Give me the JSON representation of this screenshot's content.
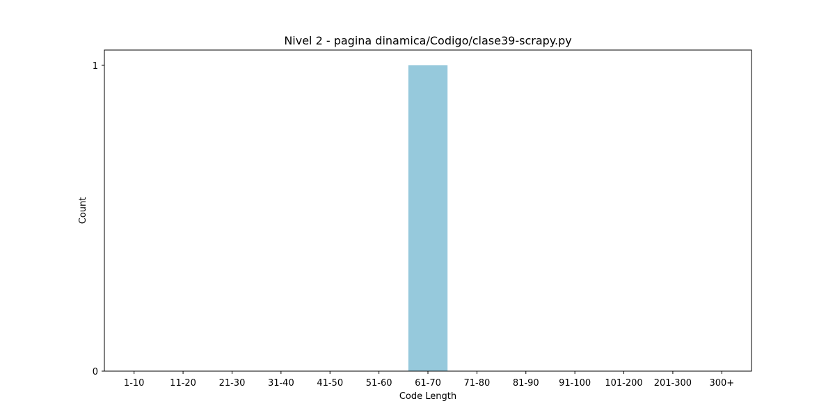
{
  "chart_data": {
    "type": "bar",
    "title": "Nivel 2 - pagina dinamica/Codigo/clase39-scrapy.py",
    "xlabel": "Code Length",
    "ylabel": "Count",
    "categories": [
      "1-10",
      "11-20",
      "21-30",
      "31-40",
      "41-50",
      "51-60",
      "61-70",
      "71-80",
      "81-90",
      "91-100",
      "101-200",
      "201-300",
      "300+"
    ],
    "values": [
      0,
      0,
      0,
      0,
      0,
      0,
      1,
      0,
      0,
      0,
      0,
      0,
      0
    ],
    "yticks": [
      0,
      1
    ],
    "ylim": [
      0,
      1.05
    ],
    "bar_color": "#96c9dc",
    "grid": false,
    "legend": false
  }
}
